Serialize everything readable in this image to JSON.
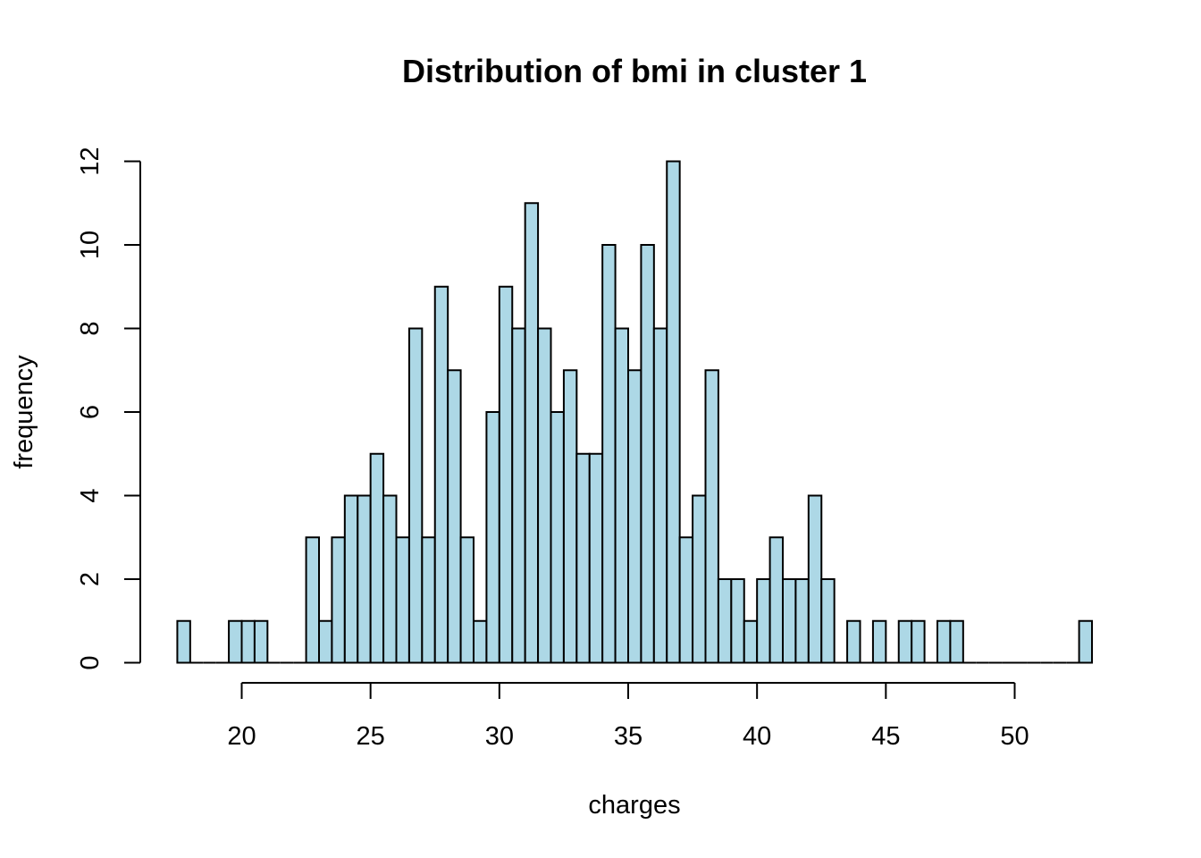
{
  "chart_data": {
    "type": "bar",
    "title": "Distribution of bmi in cluster 1",
    "xlabel": "charges",
    "ylabel": "frequency",
    "bar_color": "#add8e6",
    "x_start": 17.5,
    "bin_width": 0.5,
    "values": [
      1,
      0,
      0,
      0,
      1,
      1,
      1,
      0,
      0,
      0,
      3,
      1,
      3,
      4,
      4,
      5,
      4,
      3,
      8,
      3,
      9,
      7,
      3,
      1,
      6,
      9,
      8,
      11,
      8,
      6,
      7,
      5,
      5,
      10,
      8,
      7,
      10,
      8,
      12,
      3,
      4,
      7,
      2,
      2,
      1,
      2,
      3,
      2,
      2,
      4,
      2,
      0,
      1,
      0,
      1,
      0,
      1,
      1,
      0,
      1,
      1,
      0,
      0,
      0,
      0,
      0,
      0,
      0,
      0,
      0,
      1
    ],
    "xlim": [
      20,
      50
    ],
    "x_ticks": [
      20,
      25,
      30,
      35,
      40,
      45,
      50
    ],
    "ylim": [
      0,
      12
    ],
    "y_ticks": [
      0,
      2,
      4,
      6,
      8,
      10,
      12
    ],
    "grid": false
  }
}
